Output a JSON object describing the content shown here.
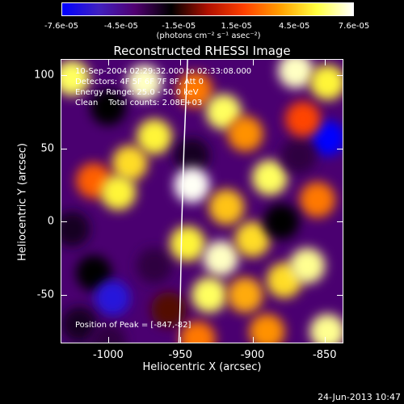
{
  "colorbar": {
    "ticks": [
      "-7.6e-05",
      "-4.5e-05",
      "-1.5e-05",
      "1.5e-05",
      "4.5e-05",
      "7.6e-05"
    ],
    "tick_values": [
      -7.6e-05,
      -4.5e-05,
      -1.5e-05,
      1.5e-05,
      4.5e-05,
      7.6e-05
    ],
    "unit": "(photons cm⁻² s⁻¹ asec⁻²)",
    "min": -7.6e-05,
    "max": 7.6e-05,
    "colors": [
      "#0000ff",
      "#4020c0",
      "#500070",
      "#000000",
      "#b01000",
      "#ff4000",
      "#ffa000",
      "#ffff40",
      "#ffffff"
    ]
  },
  "info": {
    "time_range": "10-Sep-2004 02:29:32.000 to 02:33:08.000",
    "detectors": "Detectors: 4F 5F 6F 7F 8F, Att 0",
    "energy": "Energy Range: 25.0 - 50.0 keV",
    "clean": "Clean    Total counts: 2.08E+03",
    "peak": "Position of Peak = [-847,-82]"
  },
  "footer": {
    "date": "24-Jun-2013 10:47"
  },
  "chart_data": {
    "type": "heatmap",
    "title": "Reconstructed RHESSI Image",
    "xlabel": "Heliocentric X (arcsec)",
    "ylabel": "Heliocentric Y (arcsec)",
    "xlim": [
      -1033,
      -837
    ],
    "ylim": [
      -83,
      111
    ],
    "xticks": [
      -1000,
      -950,
      -900,
      -850
    ],
    "xtick_labels": [
      "-1000",
      "-950",
      "-900",
      "-850"
    ],
    "yticks": [
      -50,
      0,
      50,
      100
    ],
    "ytick_labels": [
      "-50",
      "0",
      "50",
      "100"
    ],
    "limb_line": [
      [
        -951,
        -83
      ],
      [
        -950,
        -50
      ],
      [
        -949,
        0
      ],
      [
        -947.5,
        50
      ],
      [
        -945,
        111
      ]
    ],
    "peak_position": [
      -847,
      -82
    ],
    "grid": "off",
    "sources": [
      {
        "x": -1025,
        "y": 98,
        "value": 6e-05
      },
      {
        "x": -975,
        "y": 95,
        "value": 7e-05
      },
      {
        "x": -968,
        "y": 58,
        "value": 5.5e-05
      },
      {
        "x": -985,
        "y": 40,
        "value": 5e-05
      },
      {
        "x": -1000,
        "y": 78,
        "value": -2e-05
      },
      {
        "x": -1010,
        "y": 28,
        "value": 2.5e-05
      },
      {
        "x": -993,
        "y": 20,
        "value": 5.5e-05
      },
      {
        "x": -1025,
        "y": -5,
        "value": -2.5e-05
      },
      {
        "x": -1010,
        "y": -35,
        "value": -2e-05
      },
      {
        "x": -997,
        "y": -52,
        "value": -6.5e-05
      },
      {
        "x": -1020,
        "y": -70,
        "value": -2.5e-05
      },
      {
        "x": -1000,
        "y": -82,
        "value": -3e-05
      },
      {
        "x": -968,
        "y": -30,
        "value": -3e-05
      },
      {
        "x": -958,
        "y": -60,
        "value": -1e-05
      },
      {
        "x": -940,
        "y": 90,
        "value": 3e-05
      },
      {
        "x": -920,
        "y": 75,
        "value": 6e-05
      },
      {
        "x": -905,
        "y": 60,
        "value": 3.5e-05
      },
      {
        "x": -942,
        "y": 45,
        "value": -2.5e-05
      },
      {
        "x": -942,
        "y": 25,
        "value": 7.5e-05
      },
      {
        "x": -918,
        "y": 10,
        "value": 4.5e-05
      },
      {
        "x": -888,
        "y": 30,
        "value": 6e-05
      },
      {
        "x": -945,
        "y": -15,
        "value": 5.5e-05
      },
      {
        "x": -922,
        "y": -25,
        "value": 7e-05
      },
      {
        "x": -900,
        "y": -12,
        "value": 5e-05
      },
      {
        "x": -930,
        "y": -50,
        "value": 6e-05
      },
      {
        "x": -905,
        "y": -50,
        "value": 4e-05
      },
      {
        "x": -878,
        "y": -40,
        "value": 5e-05
      },
      {
        "x": -938,
        "y": -80,
        "value": 3e-05
      },
      {
        "x": -890,
        "y": -75,
        "value": 3.5e-05
      },
      {
        "x": -862,
        "y": -30,
        "value": 6.5e-05
      },
      {
        "x": -848,
        "y": -75,
        "value": 6.5e-05
      },
      {
        "x": -870,
        "y": 103,
        "value": 7e-05
      },
      {
        "x": -848,
        "y": 95,
        "value": 5.5e-05
      },
      {
        "x": -848,
        "y": 57,
        "value": -7.6e-05
      },
      {
        "x": -868,
        "y": 45,
        "value": -3e-05
      },
      {
        "x": -855,
        "y": 15,
        "value": 3e-05
      },
      {
        "x": -880,
        "y": 0,
        "value": -2e-05
      },
      {
        "x": -865,
        "y": 70,
        "value": 2e-05
      }
    ]
  }
}
